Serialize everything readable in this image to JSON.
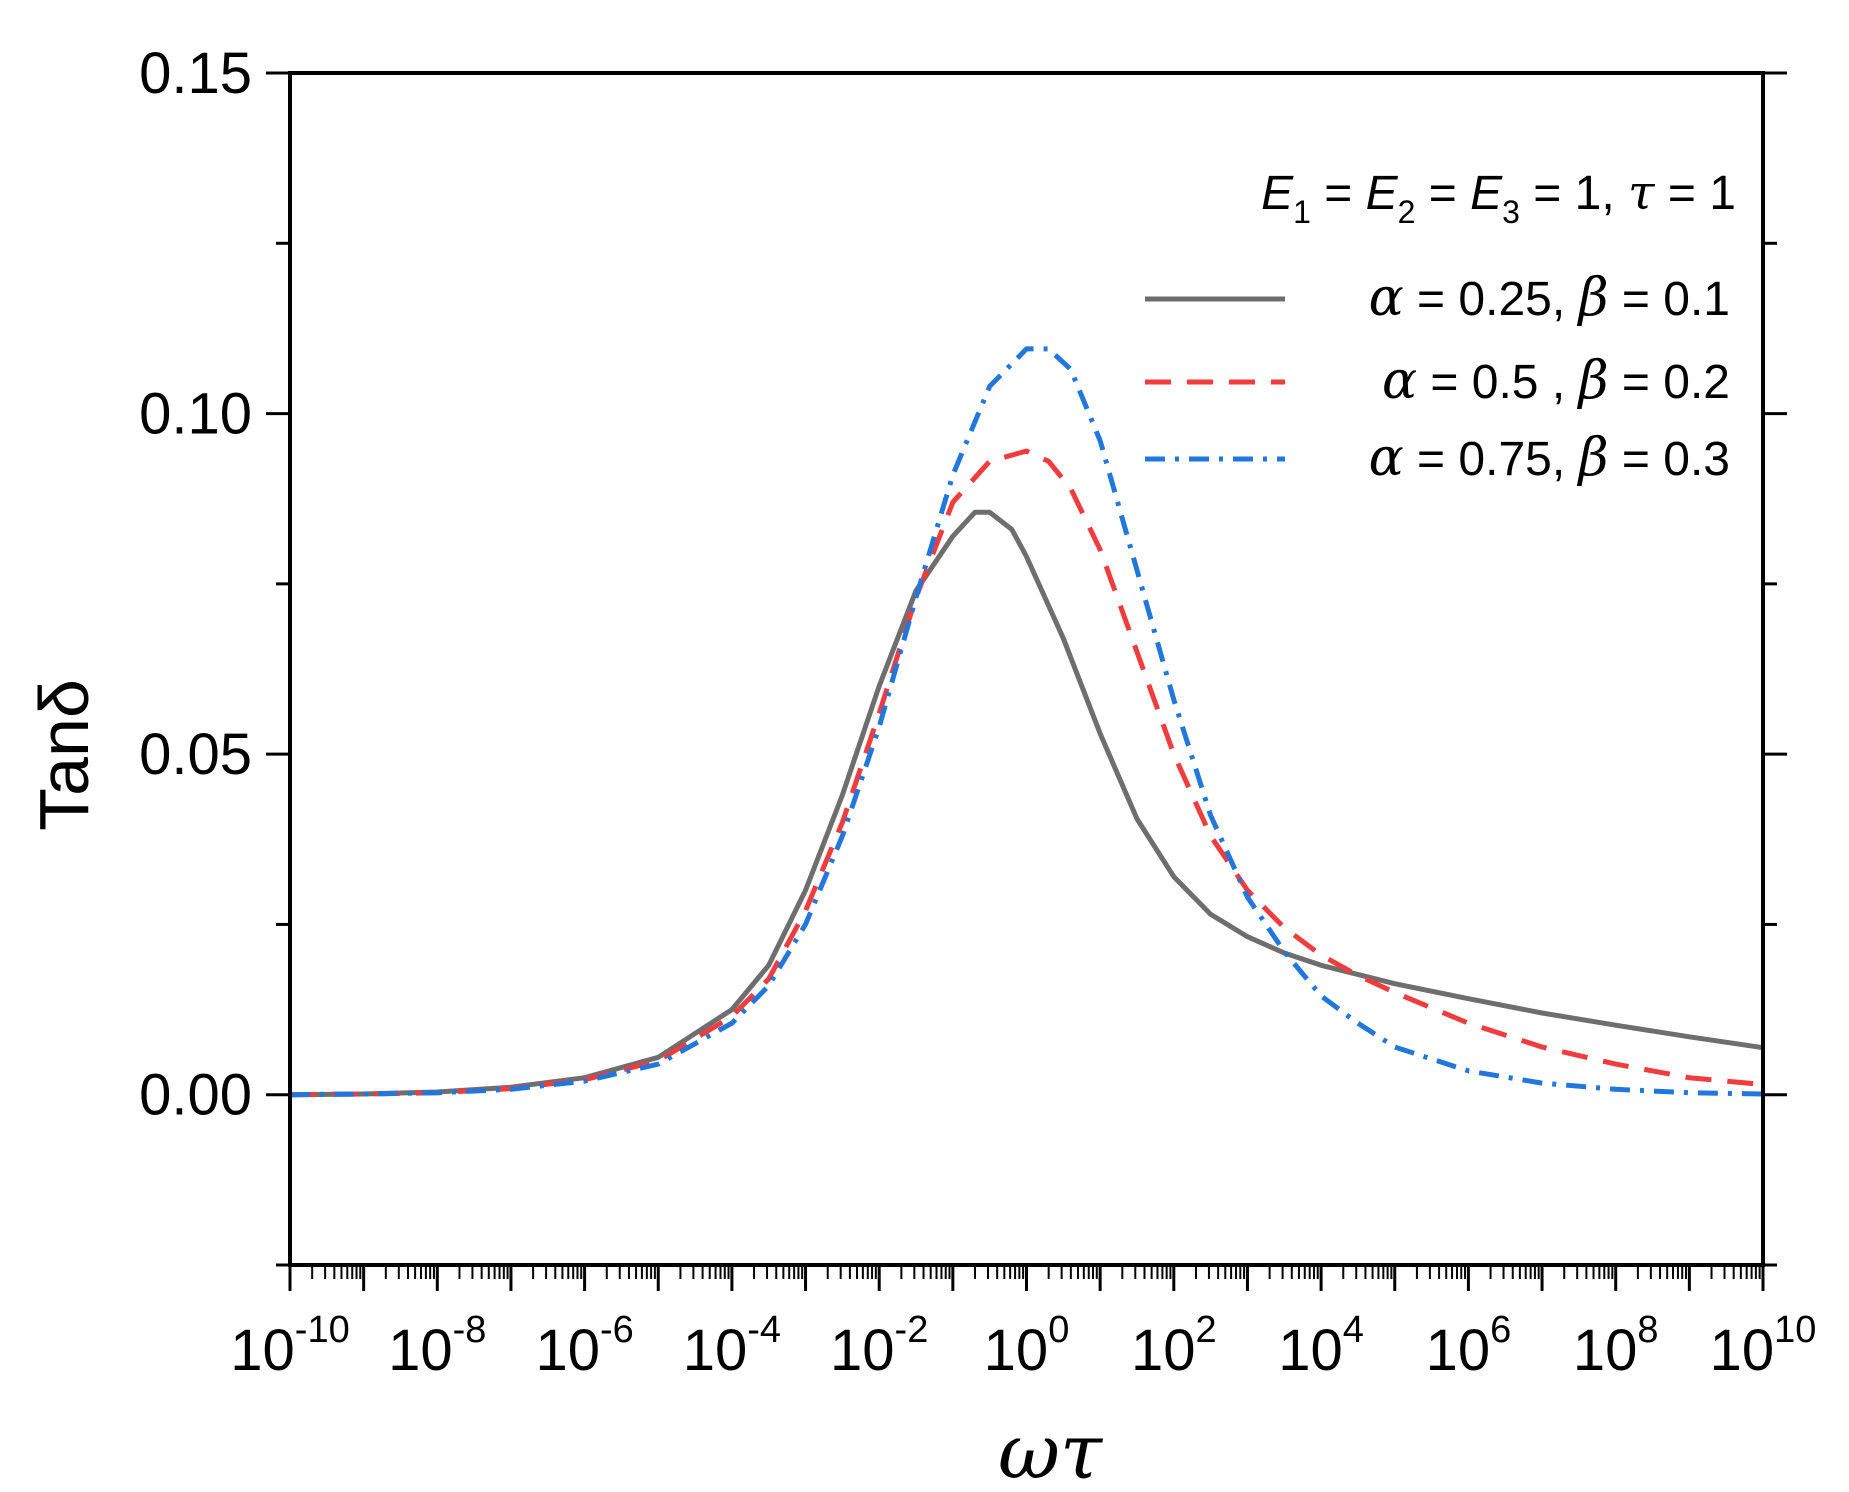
{
  "chart_data": {
    "type": "line",
    "title": "",
    "xlabel": "ωτ",
    "ylabel": "Tanδ",
    "xscale": "log",
    "xlim_exp": [
      -10,
      10
    ],
    "ylim": [
      -0.025,
      0.15
    ],
    "x_ticks": [
      {
        "exp": -10,
        "base": "10",
        "sup": "-10"
      },
      {
        "exp": -8,
        "base": "10",
        "sup": "-8"
      },
      {
        "exp": -6,
        "base": "10",
        "sup": "-6"
      },
      {
        "exp": -4,
        "base": "10",
        "sup": "-4"
      },
      {
        "exp": -2,
        "base": "10",
        "sup": "-2"
      },
      {
        "exp": 0,
        "base": "10",
        "sup": "0"
      },
      {
        "exp": 2,
        "base": "10",
        "sup": "2"
      },
      {
        "exp": 4,
        "base": "10",
        "sup": "4"
      },
      {
        "exp": 6,
        "base": "10",
        "sup": "6"
      },
      {
        "exp": 8,
        "base": "10",
        "sup": "8"
      },
      {
        "exp": 10,
        "base": "10",
        "sup": "10"
      }
    ],
    "y_ticks": [
      {
        "value": 0.0,
        "label": "0.00"
      },
      {
        "value": 0.05,
        "label": "0.05"
      },
      {
        "value": 0.1,
        "label": "0.10"
      },
      {
        "value": 0.15,
        "label": "0.15"
      }
    ],
    "annotation": {
      "e1": "E",
      "s1": "1",
      "eq1": " = ",
      "e2": "E",
      "s2": "2",
      "eq2": " = ",
      "e3": "E",
      "s3": "3",
      "eq3": " = 1, ",
      "tau": "τ",
      "tail": " = 1"
    },
    "legend_position": "top-right",
    "series": [
      {
        "name": "α = 0.25, β = 0.1",
        "label_alpha": "α",
        "label_mid": " = 0.25, ",
        "label_beta": "β",
        "label_end": " = 0.1",
        "color": "#6e6e6e",
        "dash": "",
        "x_exp": [
          -10,
          -9,
          -8,
          -7,
          -6,
          -5,
          -4,
          -3.5,
          -3,
          -2.5,
          -2,
          -1.5,
          -1,
          -0.7,
          -0.5,
          -0.2,
          0,
          0.5,
          1,
          1.5,
          2,
          2.5,
          3,
          3.5,
          4,
          5,
          6,
          7,
          8,
          9,
          10
        ],
        "values": [
          0.0,
          0.0001,
          0.0004,
          0.0011,
          0.0025,
          0.0055,
          0.0125,
          0.019,
          0.03,
          0.044,
          0.06,
          0.074,
          0.082,
          0.0855,
          0.0855,
          0.083,
          0.079,
          0.067,
          0.053,
          0.0405,
          0.032,
          0.0265,
          0.0232,
          0.0208,
          0.019,
          0.0163,
          0.0141,
          0.012,
          0.0102,
          0.0085,
          0.0069
        ]
      },
      {
        "name": "α = 0.5 ,  β = 0.2",
        "label_alpha": "α",
        "label_mid": " = 0.5 ,  ",
        "label_beta": "β",
        "label_end": " = 0.2",
        "color": "#f03c3c",
        "dash": "26,16",
        "x_exp": [
          -10,
          -9,
          -8,
          -7,
          -6,
          -5,
          -4,
          -3.5,
          -3,
          -2.5,
          -2,
          -1.5,
          -1,
          -0.5,
          0,
          0.3,
          0.6,
          1,
          1.5,
          2,
          2.5,
          3,
          3.5,
          4,
          4.5,
          5,
          6,
          7,
          8,
          9,
          10
        ],
        "values": [
          0.0,
          0.0001,
          0.0003,
          0.0009,
          0.0022,
          0.005,
          0.0115,
          0.017,
          0.027,
          0.04,
          0.056,
          0.073,
          0.087,
          0.093,
          0.0945,
          0.093,
          0.089,
          0.08,
          0.065,
          0.05,
          0.038,
          0.03,
          0.0245,
          0.0205,
          0.0175,
          0.015,
          0.0105,
          0.007,
          0.0045,
          0.0025,
          0.0015
        ]
      },
      {
        "name": "α = 0.75, β = 0.3",
        "label_alpha": "α",
        "label_mid": " = 0.75, ",
        "label_beta": "β",
        "label_end": " = 0.3",
        "color": "#2277dd",
        "dash": "20,10,4,10",
        "x_exp": [
          -10,
          -9,
          -8,
          -7,
          -6,
          -5,
          -4,
          -3.5,
          -3,
          -2.5,
          -2,
          -1.5,
          -1,
          -0.5,
          0,
          0.3,
          0.6,
          1,
          1.5,
          2,
          2.5,
          3,
          3.5,
          4,
          4.5,
          5,
          6,
          7,
          8,
          9,
          10
        ],
        "values": [
          0.0,
          0.0001,
          0.0003,
          0.0008,
          0.002,
          0.0045,
          0.0105,
          0.016,
          0.025,
          0.038,
          0.054,
          0.073,
          0.091,
          0.104,
          0.1095,
          0.1095,
          0.1065,
          0.096,
          0.077,
          0.058,
          0.041,
          0.029,
          0.021,
          0.0145,
          0.0105,
          0.007,
          0.0035,
          0.0017,
          0.0008,
          0.0003,
          0.0001
        ]
      }
    ]
  }
}
